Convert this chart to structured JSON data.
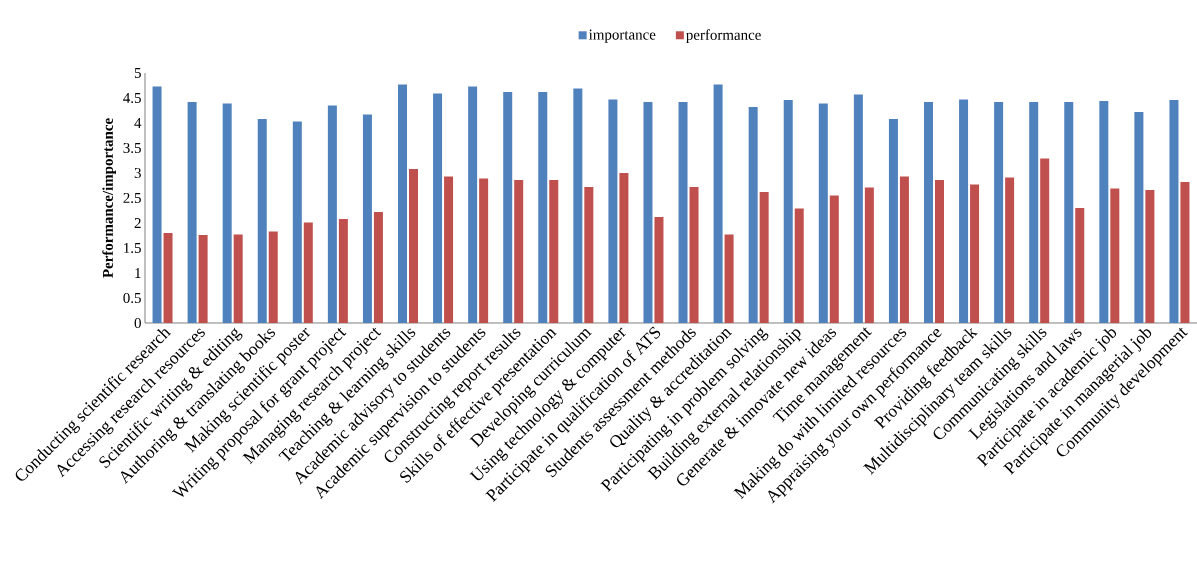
{
  "chart_data": {
    "type": "bar",
    "ylabel": "Performance/importance",
    "categories": [
      "Conducting scientific research",
      "Accessing research resources",
      "Scientific writing & editing",
      "Authoring & translating books",
      "Making scientific poster",
      "Writing proposal for grant project",
      "Managing research project",
      "Teaching & learning skills",
      "Academic advisory to students",
      "Academic supervision to students",
      "Constructing report results",
      "Skills of effective presentation",
      "Developing curriculum",
      "Using technology & computer",
      "Participate in qualification of ATS",
      "Students assessment methods",
      "Quality & accreditation",
      "Participating in problem solving",
      "Building external relationship",
      "Generate & innovate new ideas",
      "Time management",
      "Making do with limited resources",
      "Appraising your own performance",
      "Providing feedback",
      "Multidisciplinary team skills",
      "Communicating skills",
      "Legislations and laws",
      "Participate in academic job",
      "Participate in managerial job",
      "Community development"
    ],
    "series": [
      {
        "name": "importance",
        "color": "#4f81bd",
        "values": [
          4.73,
          4.42,
          4.39,
          4.08,
          4.03,
          4.35,
          4.17,
          4.77,
          4.59,
          4.73,
          4.62,
          4.62,
          4.69,
          4.47,
          4.42,
          4.42,
          4.77,
          4.32,
          4.46,
          4.39,
          4.57,
          4.08,
          4.42,
          4.47,
          4.42,
          4.42,
          4.42,
          4.44,
          4.22,
          4.46
        ]
      },
      {
        "name": "performance",
        "color": "#c0504d",
        "values": [
          1.8,
          1.76,
          1.77,
          1.83,
          2.01,
          2.08,
          2.22,
          3.08,
          2.93,
          2.89,
          2.86,
          2.86,
          2.72,
          3.0,
          2.12,
          2.72,
          1.77,
          2.62,
          2.29,
          2.55,
          2.71,
          2.93,
          2.86,
          2.77,
          2.91,
          3.29,
          2.3,
          2.69,
          2.66,
          2.82
        ]
      }
    ],
    "ylim": [
      0,
      5
    ],
    "yticks": [
      0,
      0.5,
      1,
      1.5,
      2,
      2.5,
      3,
      3.5,
      4,
      4.5,
      5
    ],
    "legend": "top",
    "grid": false
  }
}
